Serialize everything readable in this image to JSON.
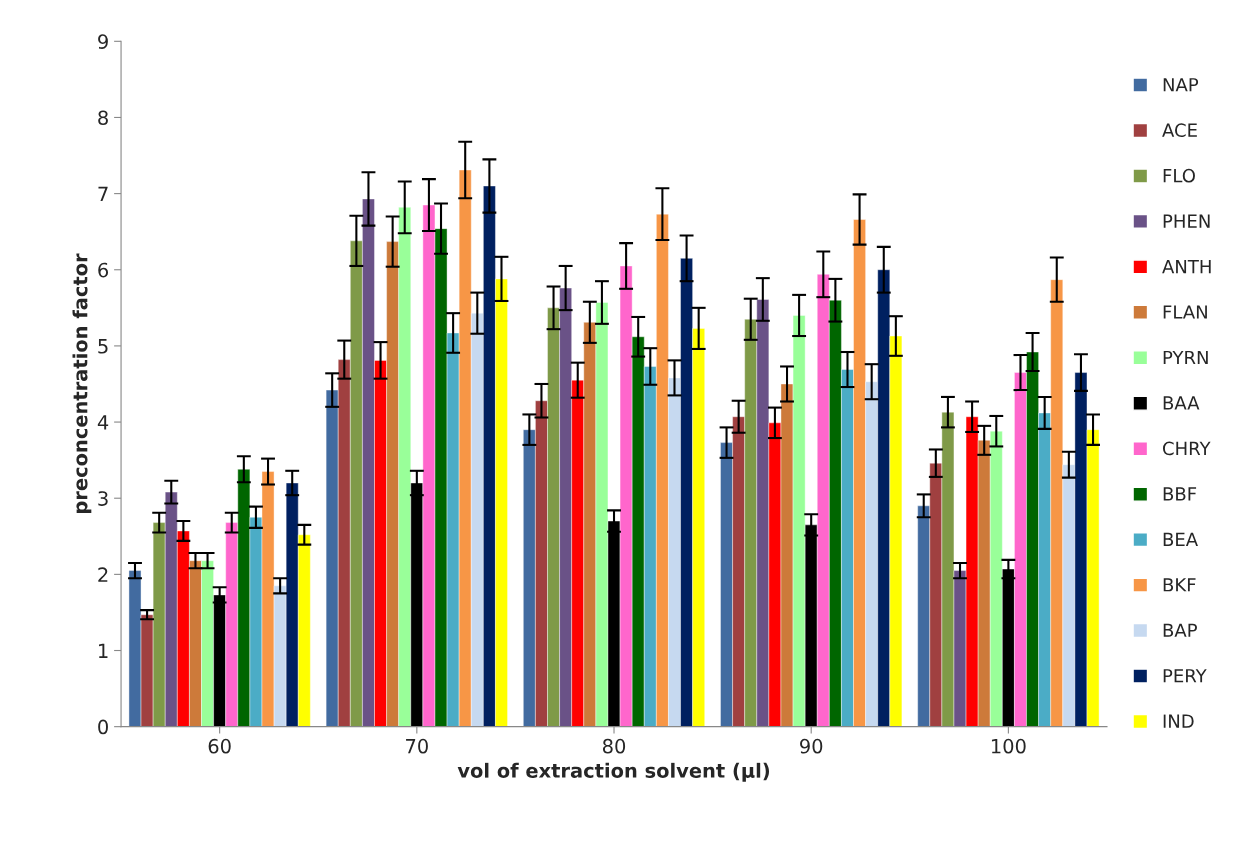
{
  "chart_data": {
    "type": "bar",
    "xlabel": "vol of extraction solvent (µl)",
    "ylabel": "preconcentration factor",
    "categories": [
      "60",
      "70",
      "80",
      "90",
      "100"
    ],
    "ylim": [
      0,
      9
    ],
    "yticks": [
      0,
      1,
      2,
      3,
      4,
      5,
      6,
      7,
      8,
      9
    ],
    "grid": false,
    "legend": "right",
    "series": [
      {
        "name": "NAP",
        "color": "#426ba0",
        "values": [
          2.05,
          4.42,
          3.9,
          3.73,
          2.9
        ],
        "errors": [
          0.1,
          0.22,
          0.2,
          0.2,
          0.15
        ]
      },
      {
        "name": "ACE",
        "color": "#a04040",
        "values": [
          1.47,
          4.82,
          4.28,
          4.07,
          3.46
        ],
        "errors": [
          0.06,
          0.25,
          0.22,
          0.21,
          0.18
        ]
      },
      {
        "name": "FLO",
        "color": "#7f9a48",
        "values": [
          2.68,
          6.38,
          5.5,
          5.35,
          4.13
        ],
        "errors": [
          0.13,
          0.33,
          0.28,
          0.27,
          0.2
        ]
      },
      {
        "name": "PHEN",
        "color": "#6a5287",
        "values": [
          3.08,
          6.93,
          5.76,
          5.61,
          2.05
        ],
        "errors": [
          0.15,
          0.35,
          0.29,
          0.28,
          0.1
        ]
      },
      {
        "name": "ANTH",
        "color": "#ff0000",
        "values": [
          2.57,
          4.81,
          4.55,
          3.99,
          4.07
        ],
        "errors": [
          0.13,
          0.24,
          0.23,
          0.2,
          0.2
        ]
      },
      {
        "name": "FLAN",
        "color": "#cd7a3a",
        "values": [
          2.18,
          6.37,
          5.31,
          4.5,
          3.76
        ],
        "errors": [
          0.1,
          0.33,
          0.27,
          0.23,
          0.19
        ]
      },
      {
        "name": "PYRN",
        "color": "#99ff99",
        "values": [
          2.18,
          6.82,
          5.57,
          5.4,
          3.88
        ],
        "errors": [
          0.1,
          0.34,
          0.28,
          0.27,
          0.2
        ]
      },
      {
        "name": "BAA",
        "color": "#000000",
        "values": [
          1.73,
          3.2,
          2.7,
          2.65,
          2.07
        ],
        "errors": [
          0.1,
          0.16,
          0.14,
          0.14,
          0.12
        ]
      },
      {
        "name": "CHRY",
        "color": "#ff66cc",
        "values": [
          2.68,
          6.85,
          6.05,
          5.94,
          4.65
        ],
        "errors": [
          0.13,
          0.34,
          0.3,
          0.3,
          0.23
        ]
      },
      {
        "name": "BBF",
        "color": "#006600",
        "values": [
          3.38,
          6.54,
          5.12,
          5.6,
          4.92
        ],
        "errors": [
          0.17,
          0.33,
          0.26,
          0.28,
          0.25
        ]
      },
      {
        "name": "BEA",
        "color": "#4bacc6",
        "values": [
          2.75,
          5.17,
          4.73,
          4.69,
          4.12
        ],
        "errors": [
          0.14,
          0.26,
          0.24,
          0.23,
          0.21
        ]
      },
      {
        "name": "BKF",
        "color": "#f79646",
        "values": [
          3.35,
          7.31,
          6.73,
          6.66,
          5.87
        ],
        "errors": [
          0.17,
          0.37,
          0.34,
          0.33,
          0.29
        ]
      },
      {
        "name": "BAP",
        "color": "#c6d9f0",
        "values": [
          1.85,
          5.43,
          4.58,
          4.53,
          3.44
        ],
        "errors": [
          0.1,
          0.27,
          0.23,
          0.23,
          0.17
        ]
      },
      {
        "name": "PERY",
        "color": "#002060",
        "values": [
          3.2,
          7.1,
          6.15,
          6.0,
          4.65
        ],
        "errors": [
          0.16,
          0.35,
          0.3,
          0.3,
          0.24
        ]
      },
      {
        "name": "IND",
        "color": "#ffff00",
        "values": [
          2.52,
          5.88,
          5.23,
          5.13,
          3.9
        ],
        "errors": [
          0.13,
          0.29,
          0.27,
          0.26,
          0.2
        ]
      }
    ]
  }
}
